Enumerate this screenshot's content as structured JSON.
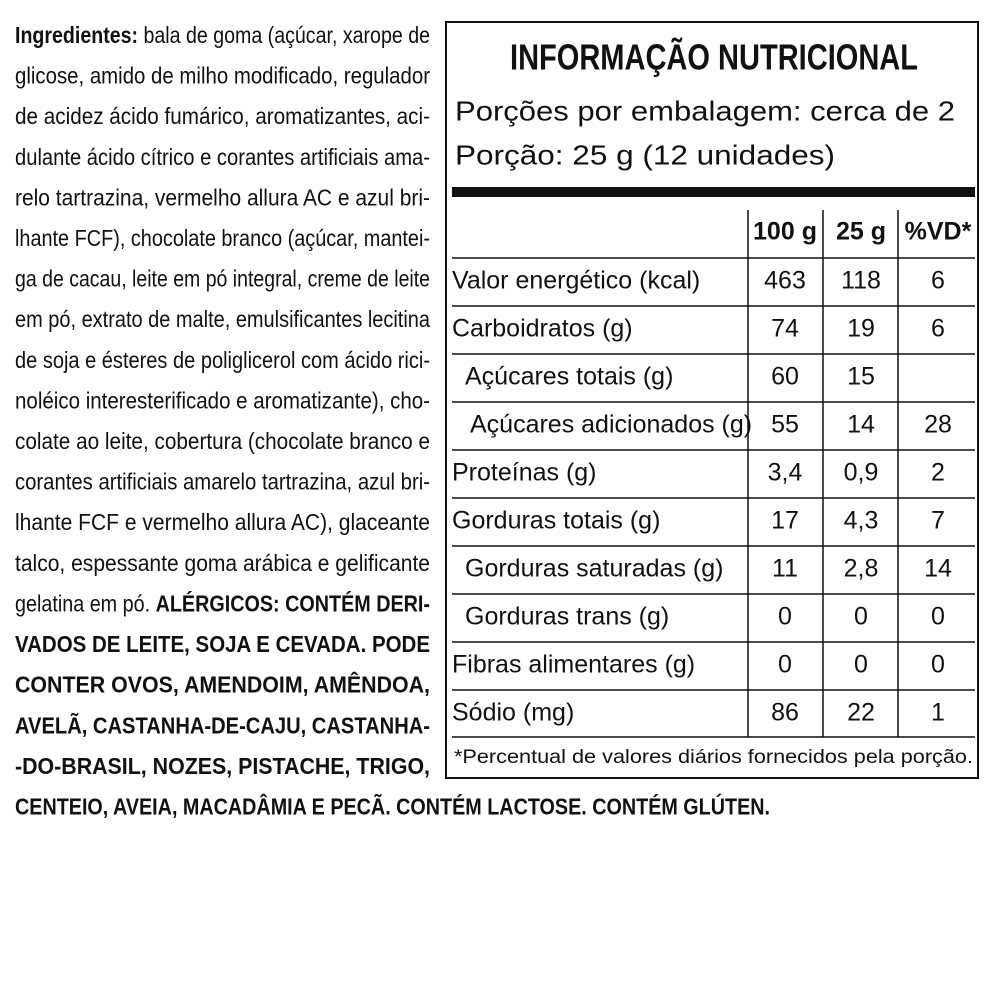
{
  "ingredients": {
    "label": "Ingredientes:",
    "lines": [
      "bala de goma (açúcar, xarope de",
      "glicose, amido de milho modificado, regulador",
      "de acidez ácido fumárico, aromatizantes, aci-",
      "dulante ácido cítrico e corantes artificiais ama-",
      "relo tartrazina, vermelho allura AC e azul bri-",
      "lhante FCF), chocolate branco (açúcar, mantei-",
      "ga de cacau, leite em pó integral, creme de leite",
      "em pó, extrato de malte, emulsificantes lecitina",
      "de soja e ésteres de poliglicerol com ácido rici-",
      "noléico interesterificado e aromatizante), cho-",
      "colate ao leite, cobertura (chocolate branco e",
      "corantes artificiais amarelo tartrazina, azul bri-",
      "lhante FCF e vermelho allura AC), glaceante",
      "talco, espessante goma arábica e gelificante",
      "gelatina em pó."
    ]
  },
  "allergens": {
    "lines": [
      "ALÉRGICOS: CONTÉM DERI-",
      "VADOS DE LEITE, SOJA E CEVADA. PODE",
      "CONTER OVOS, AMENDOIM, AMÊNDOA,",
      "AVELÃ, CASTANHA-DE-CAJU, CASTANHA-",
      "-DO-BRASIL, NOZES, PISTACHE, TRIGO,",
      "CENTEIO, AVEIA, MACADÂMIA E PECÃ. CONTÉM LACTOSE. CONTÉM GLÚTEN."
    ]
  },
  "nutrition_table": {
    "title": "INFORMAÇÃO NUTRICIONAL",
    "servings_per_package": "Porções por embalagem: cerca de 2",
    "serving_size": "Porção: 25 g (12 unidades)",
    "columns": [
      "100 g",
      "25 g",
      "%VD*"
    ],
    "rows": [
      {
        "label": "Valor energético (kcal)",
        "values": [
          "463",
          "118",
          "6"
        ]
      },
      {
        "label": "Carboidratos (g)",
        "values": [
          "74",
          "19",
          "6"
        ]
      },
      {
        "label": "Açúcares totais (g)",
        "values": [
          "60",
          "15",
          null
        ]
      },
      {
        "label": "Açúcares adicionados (g)",
        "values": [
          "55",
          "14",
          "28"
        ]
      },
      {
        "label": "Proteínas (g)",
        "values": [
          "3,4",
          "0,9",
          "2"
        ]
      },
      {
        "label": "Gorduras totais (g)",
        "values": [
          "17",
          "4,3",
          "7"
        ]
      },
      {
        "label": "Gorduras saturadas (g)",
        "values": [
          "11",
          "2,8",
          "14"
        ]
      },
      {
        "label": "Gorduras trans (g)",
        "values": [
          "0",
          "0",
          "0"
        ]
      },
      {
        "label": "Fibras alimentares (g)",
        "values": [
          "0",
          "0",
          "0"
        ]
      },
      {
        "label": "Sódio (mg)",
        "values": [
          "86",
          "22",
          "1"
        ]
      }
    ],
    "footnote": "*Percentual de valores diários fornecidos pela porção."
  }
}
